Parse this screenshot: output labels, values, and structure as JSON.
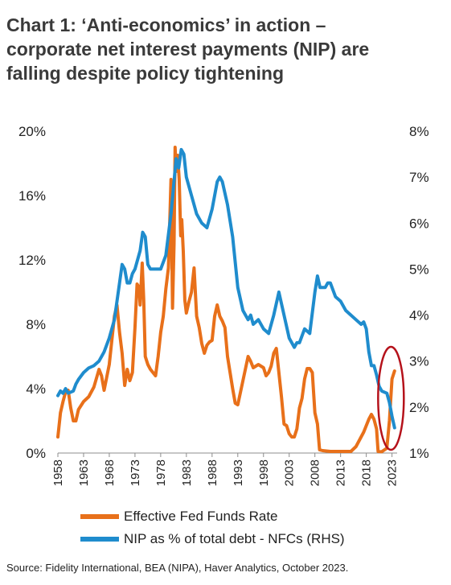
{
  "title_lines": [
    "Chart 1: ‘Anti-economics’ in action –",
    "corporate net interest payments (NIP) are",
    "falling despite policy tightening"
  ],
  "source": "Source: Fidelity International, BEA (NIPA), Haver Analytics, October 2023.",
  "colors": {
    "fed": "#e8701a",
    "nip": "#1f8ccd",
    "circle": "#b5121b"
  },
  "chart_data": {
    "type": "line",
    "title": "Chart 1: ‘Anti-economics’ in action – corporate net interest payments (NIP) are falling despite policy tightening",
    "x_ticks": [
      "1958",
      "1963",
      "1968",
      "1973",
      "1978",
      "1983",
      "1988",
      "1993",
      "1998",
      "2003",
      "2008",
      "2013",
      "2018",
      "2023"
    ],
    "xlim": [
      1958,
      2024
    ],
    "left_ticks": [
      "0%",
      "4%",
      "8%",
      "12%",
      "16%",
      "20%"
    ],
    "right_ticks": [
      "1%",
      "2%",
      "3%",
      "4%",
      "5%",
      "6%",
      "7%",
      "8%"
    ],
    "ylim_left": [
      0,
      20
    ],
    "ylim_right": [
      1,
      8
    ],
    "legend_position": "bottom",
    "series": [
      {
        "name": "Effective Fed Funds Rate",
        "axis": "left",
        "points": [
          [
            1958.0,
            1.0
          ],
          [
            1958.5,
            2.5
          ],
          [
            1959.0,
            3.2
          ],
          [
            1959.5,
            3.8
          ],
          [
            1960.0,
            3.9
          ],
          [
            1960.5,
            2.8
          ],
          [
            1961.0,
            2.0
          ],
          [
            1961.5,
            2.0
          ],
          [
            1962.0,
            2.7
          ],
          [
            1963.0,
            3.2
          ],
          [
            1964.0,
            3.5
          ],
          [
            1965.0,
            4.1
          ],
          [
            1966.0,
            5.2
          ],
          [
            1966.5,
            4.8
          ],
          [
            1967.0,
            3.9
          ],
          [
            1968.0,
            5.5
          ],
          [
            1969.0,
            8.5
          ],
          [
            1969.5,
            9.2
          ],
          [
            1970.0,
            7.5
          ],
          [
            1970.5,
            6.2
          ],
          [
            1971.0,
            4.2
          ],
          [
            1971.5,
            5.2
          ],
          [
            1972.0,
            4.5
          ],
          [
            1972.5,
            5.0
          ],
          [
            1973.0,
            7.8
          ],
          [
            1973.4,
            10.5
          ],
          [
            1973.8,
            10.3
          ],
          [
            1974.0,
            9.2
          ],
          [
            1974.4,
            11.8
          ],
          [
            1974.7,
            9.5
          ],
          [
            1975.0,
            6.0
          ],
          [
            1975.5,
            5.5
          ],
          [
            1976.0,
            5.2
          ],
          [
            1976.5,
            5.0
          ],
          [
            1977.0,
            4.8
          ],
          [
            1977.5,
            6.0
          ],
          [
            1978.0,
            7.5
          ],
          [
            1978.5,
            8.5
          ],
          [
            1979.0,
            10.2
          ],
          [
            1979.5,
            11.5
          ],
          [
            1980.0,
            17.0
          ],
          [
            1980.3,
            9.0
          ],
          [
            1980.6,
            13.0
          ],
          [
            1980.8,
            19.0
          ],
          [
            1981.0,
            17.5
          ],
          [
            1981.3,
            18.5
          ],
          [
            1981.6,
            17.0
          ],
          [
            1981.9,
            13.5
          ],
          [
            1982.1,
            14.5
          ],
          [
            1982.4,
            12.5
          ],
          [
            1982.7,
            9.5
          ],
          [
            1983.0,
            8.7
          ],
          [
            1983.5,
            9.4
          ],
          [
            1984.0,
            10.0
          ],
          [
            1984.5,
            11.5
          ],
          [
            1985.0,
            8.5
          ],
          [
            1985.5,
            7.8
          ],
          [
            1986.0,
            6.8
          ],
          [
            1986.5,
            6.2
          ],
          [
            1987.0,
            6.7
          ],
          [
            1987.5,
            6.9
          ],
          [
            1988.0,
            7.0
          ],
          [
            1988.5,
            8.5
          ],
          [
            1989.0,
            9.2
          ],
          [
            1989.5,
            8.5
          ],
          [
            1990.0,
            8.2
          ],
          [
            1990.5,
            7.8
          ],
          [
            1991.0,
            6.0
          ],
          [
            1991.5,
            5.0
          ],
          [
            1992.0,
            4.0
          ],
          [
            1992.5,
            3.1
          ],
          [
            1993.0,
            3.0
          ],
          [
            1994.0,
            4.5
          ],
          [
            1995.0,
            6.0
          ],
          [
            1995.5,
            5.7
          ],
          [
            1996.0,
            5.3
          ],
          [
            1997.0,
            5.5
          ],
          [
            1998.0,
            5.3
          ],
          [
            1998.5,
            4.8
          ],
          [
            1999.0,
            5.0
          ],
          [
            1999.5,
            5.4
          ],
          [
            2000.0,
            6.2
          ],
          [
            2000.5,
            6.5
          ],
          [
            2001.0,
            5.0
          ],
          [
            2001.5,
            3.5
          ],
          [
            2002.0,
            1.8
          ],
          [
            2002.5,
            1.7
          ],
          [
            2003.0,
            1.2
          ],
          [
            2003.5,
            1.0
          ],
          [
            2004.0,
            1.0
          ],
          [
            2004.5,
            1.5
          ],
          [
            2005.0,
            2.8
          ],
          [
            2005.5,
            3.4
          ],
          [
            2006.0,
            4.6
          ],
          [
            2006.5,
            5.25
          ],
          [
            2007.0,
            5.25
          ],
          [
            2007.5,
            5.0
          ],
          [
            2008.0,
            2.5
          ],
          [
            2008.5,
            1.8
          ],
          [
            2008.9,
            0.2
          ],
          [
            2009.5,
            0.15
          ],
          [
            2011.0,
            0.1
          ],
          [
            2013.0,
            0.1
          ],
          [
            2015.0,
            0.1
          ],
          [
            2016.0,
            0.4
          ],
          [
            2017.0,
            1.0
          ],
          [
            2017.5,
            1.3
          ],
          [
            2018.0,
            1.7
          ],
          [
            2018.5,
            2.1
          ],
          [
            2019.0,
            2.4
          ],
          [
            2019.5,
            2.1
          ],
          [
            2020.0,
            1.5
          ],
          [
            2020.3,
            0.1
          ],
          [
            2021.0,
            0.08
          ],
          [
            2022.0,
            0.3
          ],
          [
            2022.5,
            2.0
          ],
          [
            2023.0,
            4.6
          ],
          [
            2023.5,
            5.1
          ]
        ]
      },
      {
        "name": "NIP as % of total debt - NFCs (RHS)",
        "axis": "right",
        "points": [
          [
            1958.0,
            2.25
          ],
          [
            1958.5,
            2.35
          ],
          [
            1959.0,
            2.3
          ],
          [
            1959.5,
            2.4
          ],
          [
            1960.0,
            2.3
          ],
          [
            1961.0,
            2.35
          ],
          [
            1961.5,
            2.5
          ],
          [
            1962.0,
            2.6
          ],
          [
            1963.0,
            2.75
          ],
          [
            1964.0,
            2.85
          ],
          [
            1965.0,
            2.9
          ],
          [
            1966.0,
            3.0
          ],
          [
            1967.0,
            3.2
          ],
          [
            1968.0,
            3.5
          ],
          [
            1969.0,
            3.9
          ],
          [
            1970.0,
            4.7
          ],
          [
            1970.5,
            5.1
          ],
          [
            1971.0,
            5.0
          ],
          [
            1971.5,
            4.7
          ],
          [
            1972.0,
            4.7
          ],
          [
            1972.5,
            4.9
          ],
          [
            1973.0,
            5.0
          ],
          [
            1974.0,
            5.4
          ],
          [
            1974.5,
            5.8
          ],
          [
            1975.0,
            5.7
          ],
          [
            1975.5,
            5.1
          ],
          [
            1976.0,
            5.0
          ],
          [
            1977.0,
            5.0
          ],
          [
            1978.0,
            5.0
          ],
          [
            1979.0,
            5.3
          ],
          [
            1980.0,
            6.2
          ],
          [
            1980.5,
            6.8
          ],
          [
            1981.0,
            7.4
          ],
          [
            1981.5,
            7.2
          ],
          [
            1982.0,
            7.6
          ],
          [
            1982.5,
            7.5
          ],
          [
            1983.0,
            7.0
          ],
          [
            1984.0,
            6.6
          ],
          [
            1985.0,
            6.2
          ],
          [
            1986.0,
            6.0
          ],
          [
            1987.0,
            5.9
          ],
          [
            1988.0,
            6.3
          ],
          [
            1989.0,
            6.9
          ],
          [
            1989.5,
            7.0
          ],
          [
            1990.0,
            6.9
          ],
          [
            1991.0,
            6.4
          ],
          [
            1992.0,
            5.7
          ],
          [
            1993.0,
            4.6
          ],
          [
            1994.0,
            4.1
          ],
          [
            1995.0,
            3.9
          ],
          [
            1995.5,
            4.0
          ],
          [
            1996.0,
            3.8
          ],
          [
            1997.0,
            3.9
          ],
          [
            1998.0,
            3.7
          ],
          [
            1999.0,
            3.6
          ],
          [
            2000.0,
            4.0
          ],
          [
            2001.0,
            4.5
          ],
          [
            2002.0,
            4.0
          ],
          [
            2003.0,
            3.5
          ],
          [
            2004.0,
            3.3
          ],
          [
            2004.5,
            3.4
          ],
          [
            2005.0,
            3.4
          ],
          [
            2006.0,
            3.7
          ],
          [
            2007.0,
            3.6
          ],
          [
            2008.0,
            4.5
          ],
          [
            2008.5,
            4.85
          ],
          [
            2009.0,
            4.6
          ],
          [
            2010.0,
            4.6
          ],
          [
            2010.5,
            4.7
          ],
          [
            2011.0,
            4.7
          ],
          [
            2012.0,
            4.4
          ],
          [
            2013.0,
            4.3
          ],
          [
            2014.0,
            4.1
          ],
          [
            2015.0,
            4.0
          ],
          [
            2016.0,
            3.9
          ],
          [
            2017.0,
            3.8
          ],
          [
            2017.5,
            3.85
          ],
          [
            2018.0,
            3.7
          ],
          [
            2018.5,
            3.2
          ],
          [
            2019.0,
            2.9
          ],
          [
            2019.5,
            2.9
          ],
          [
            2020.0,
            2.7
          ],
          [
            2020.5,
            2.45
          ],
          [
            2021.0,
            2.35
          ],
          [
            2022.0,
            2.3
          ],
          [
            2022.5,
            2.1
          ],
          [
            2023.0,
            1.8
          ],
          [
            2023.5,
            1.55
          ]
        ]
      }
    ]
  }
}
